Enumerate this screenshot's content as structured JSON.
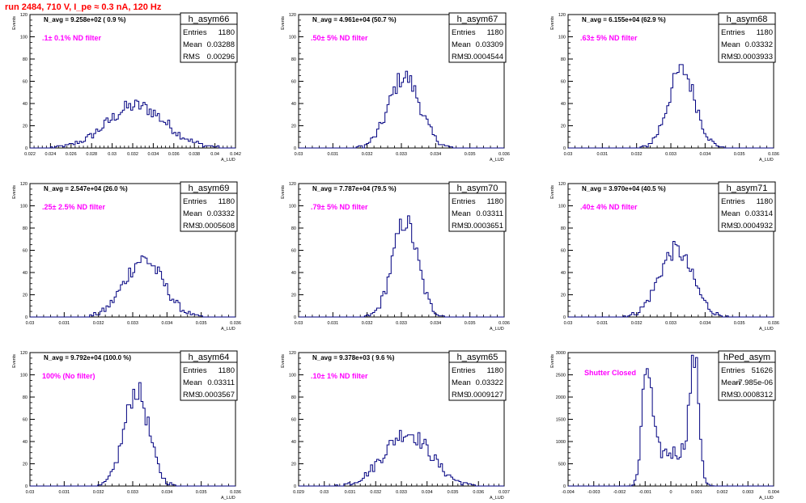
{
  "page": {
    "title": "run 2484,   710 V, I_pe ≈ 0.3 nA, 120 Hz"
  },
  "colors": {
    "histogram": "#000080",
    "title": "#ff0000",
    "annotation": "#ff00ff",
    "axis": "#000000",
    "background": "#ffffff"
  },
  "chart_data": [
    {
      "type": "histogram",
      "name": "h_asym66",
      "ylabel": "Events",
      "xlabel": "A_LUD",
      "xlim": [
        0.022,
        0.043
      ],
      "ylim": [
        0,
        120
      ],
      "xticks": [
        "0.022",
        "0.024",
        "0.026",
        "0.028",
        "0.03",
        "0.032",
        "0.034",
        "0.036",
        "0.038",
        "0.04",
        "0.042"
      ],
      "yticks": [
        "0",
        "20",
        "40",
        "60",
        "80",
        "100",
        "120"
      ],
      "stats": {
        "entries_label": "Entries",
        "entries": "1180",
        "mean_label": "Mean",
        "mean": "0.03288",
        "rms_label": "RMS",
        "rms": "0.00296"
      },
      "navg": "N_avg = 9.258e+02 ( 0.9 %)",
      "filter": ".1± 0.1% ND filter",
      "dist": {
        "mean": 0.03288,
        "sigma": 0.00296,
        "peak": 38
      }
    },
    {
      "type": "histogram",
      "name": "h_asym67",
      "ylabel": "Events",
      "xlabel": "A_LUD",
      "xlim": [
        0.03,
        0.036
      ],
      "ylim": [
        0,
        120
      ],
      "xticks": [
        "0.03",
        "0.031",
        "0.032",
        "0.033",
        "0.034",
        "0.035",
        "0.036"
      ],
      "yticks": [
        "0",
        "20",
        "40",
        "60",
        "80",
        "100",
        "120"
      ],
      "stats": {
        "entries_label": "Entries",
        "entries": "1180",
        "mean_label": "Mean",
        "mean": "0.03309",
        "rms_label": "RMS",
        "rms": "0.0004544"
      },
      "navg": "N_avg = 4.961e+04 (50.7 %)",
      "filter": ".50± 5% ND filter",
      "dist": {
        "mean": 0.03309,
        "sigma": 0.0004544,
        "peak": 64
      }
    },
    {
      "type": "histogram",
      "name": "h_asym68",
      "ylabel": "Events",
      "xlabel": "A_LUD",
      "xlim": [
        0.03,
        0.036
      ],
      "ylim": [
        0,
        120
      ],
      "xticks": [
        "0.03",
        "0.031",
        "0.032",
        "0.033",
        "0.034",
        "0.035",
        "0.036"
      ],
      "yticks": [
        "0",
        "20",
        "40",
        "60",
        "80",
        "100",
        "120"
      ],
      "stats": {
        "entries_label": "Entries",
        "entries": "1180",
        "mean_label": "Mean",
        "mean": "0.03332",
        "rms_label": "RMS",
        "rms": "0.0003933"
      },
      "navg": "N_avg = 6.155e+04 (62.9 %)",
      "filter": ".63± 5% ND filter",
      "dist": {
        "mean": 0.03332,
        "sigma": 0.0003933,
        "peak": 70
      }
    },
    {
      "type": "histogram",
      "name": "h_asym69",
      "ylabel": "Events",
      "xlabel": "A_LUD",
      "xlim": [
        0.03,
        0.036
      ],
      "ylim": [
        0,
        120
      ],
      "xticks": [
        "0.03",
        "0.031",
        "0.032",
        "0.033",
        "0.034",
        "0.035",
        "0.036"
      ],
      "yticks": [
        "0",
        "20",
        "40",
        "60",
        "80",
        "100",
        "120"
      ],
      "stats": {
        "entries_label": "Entries",
        "entries": "1180",
        "mean_label": "Mean",
        "mean": "0.03332",
        "rms_label": "RMS",
        "rms": "0.0005608"
      },
      "navg": "N_avg = 2.547e+04 (26.0 %)",
      "filter": ".25± 2.5% ND filter",
      "dist": {
        "mean": 0.03332,
        "sigma": 0.0005608,
        "peak": 52
      }
    },
    {
      "type": "histogram",
      "name": "h_asym70",
      "ylabel": "Events",
      "xlabel": "A_LUD",
      "xlim": [
        0.03,
        0.036
      ],
      "ylim": [
        0,
        120
      ],
      "xticks": [
        "0.03",
        "0.031",
        "0.032",
        "0.033",
        "0.034",
        "0.035",
        "0.036"
      ],
      "yticks": [
        "0",
        "20",
        "40",
        "60",
        "80",
        "100",
        "120"
      ],
      "stats": {
        "entries_label": "Entries",
        "entries": "1180",
        "mean_label": "Mean",
        "mean": "0.03311",
        "rms_label": "RMS",
        "rms": "0.0003651"
      },
      "navg": "N_avg = 7.787e+04 (79.5 %)",
      "filter": ".79± 5% ND filter",
      "dist": {
        "mean": 0.03311,
        "sigma": 0.0003651,
        "peak": 86
      }
    },
    {
      "type": "histogram",
      "name": "h_asym71",
      "ylabel": "Events",
      "xlabel": "A_LUD",
      "xlim": [
        0.03,
        0.036
      ],
      "ylim": [
        0,
        120
      ],
      "xticks": [
        "0.03",
        "0.031",
        "0.032",
        "0.033",
        "0.034",
        "0.035",
        "0.036"
      ],
      "yticks": [
        "0",
        "20",
        "40",
        "60",
        "80",
        "100",
        "120"
      ],
      "stats": {
        "entries_label": "Entries",
        "entries": "1180",
        "mean_label": "Mean",
        "mean": "0.03314",
        "rms_label": "RMS",
        "rms": "0.0004932"
      },
      "navg": "N_avg = 3.970e+04 (40.5 %)",
      "filter": ".40± 4% ND filter",
      "dist": {
        "mean": 0.03314,
        "sigma": 0.0004932,
        "peak": 60
      }
    },
    {
      "type": "histogram",
      "name": "h_asym64",
      "ylabel": "Events",
      "xlabel": "A_LUD",
      "xlim": [
        0.03,
        0.036
      ],
      "ylim": [
        0,
        120
      ],
      "xticks": [
        "0.03",
        "0.031",
        "0.032",
        "0.033",
        "0.034",
        "0.035",
        "0.036"
      ],
      "yticks": [
        "0",
        "20",
        "40",
        "60",
        "80",
        "100",
        "120"
      ],
      "stats": {
        "entries_label": "Entries",
        "entries": "1180",
        "mean_label": "Mean",
        "mean": "0.03311",
        "rms_label": "RMS",
        "rms": "0.0003567"
      },
      "navg": "N_avg = 9.792e+04 (100.0 %)",
      "filter": "100% (No filter)",
      "dist": {
        "mean": 0.03311,
        "sigma": 0.0003567,
        "peak": 86
      }
    },
    {
      "type": "histogram",
      "name": "h_asym65",
      "ylabel": "Events",
      "xlabel": "A_LUD",
      "xlim": [
        0.029,
        0.037
      ],
      "ylim": [
        0,
        120
      ],
      "xticks": [
        "0.029",
        "0.03",
        "0.031",
        "0.032",
        "0.033",
        "0.034",
        "0.035",
        "0.036",
        "0.037"
      ],
      "yticks": [
        "0",
        "20",
        "40",
        "60",
        "80",
        "100",
        "120"
      ],
      "stats": {
        "entries_label": "Entries",
        "entries": "1180",
        "mean_label": "Mean",
        "mean": "0.03322",
        "rms_label": "RMS",
        "rms": "0.0009127"
      },
      "navg": "N_avg = 9.378e+03 ( 9.6 %)",
      "filter": ".10± 1% ND filter",
      "dist": {
        "mean": 0.03322,
        "sigma": 0.0009127,
        "peak": 48
      }
    },
    {
      "type": "histogram",
      "name": "hPed_asym",
      "ylabel": "Events",
      "xlabel": "A_LUD",
      "xlim": [
        -0.004,
        0.004
      ],
      "ylim": [
        0,
        3100
      ],
      "xticks": [
        "-0.004",
        "-0.003",
        "-0.002",
        "-0.001",
        "0",
        "0.001",
        "0.002",
        "0.003",
        "0.004"
      ],
      "yticks": [
        "0",
        "500",
        "1000",
        "1500",
        "2000",
        "2500",
        "3000"
      ],
      "stats": {
        "entries_label": "Entries",
        "entries": "51626",
        "mean_label": "Mean",
        "mean": "-7.985e-06",
        "rms_label": "RMS",
        "rms": "0.0008312"
      },
      "navg": "",
      "filter": "Shutter Closed",
      "dist": {
        "bimodal": true,
        "mu1": -0.00093,
        "mu2": 0.00092,
        "sigma": 0.00018,
        "peak1": 2800,
        "peak2": 2950,
        "floor": 780,
        "floor_sigma": 0.0007
      }
    }
  ]
}
